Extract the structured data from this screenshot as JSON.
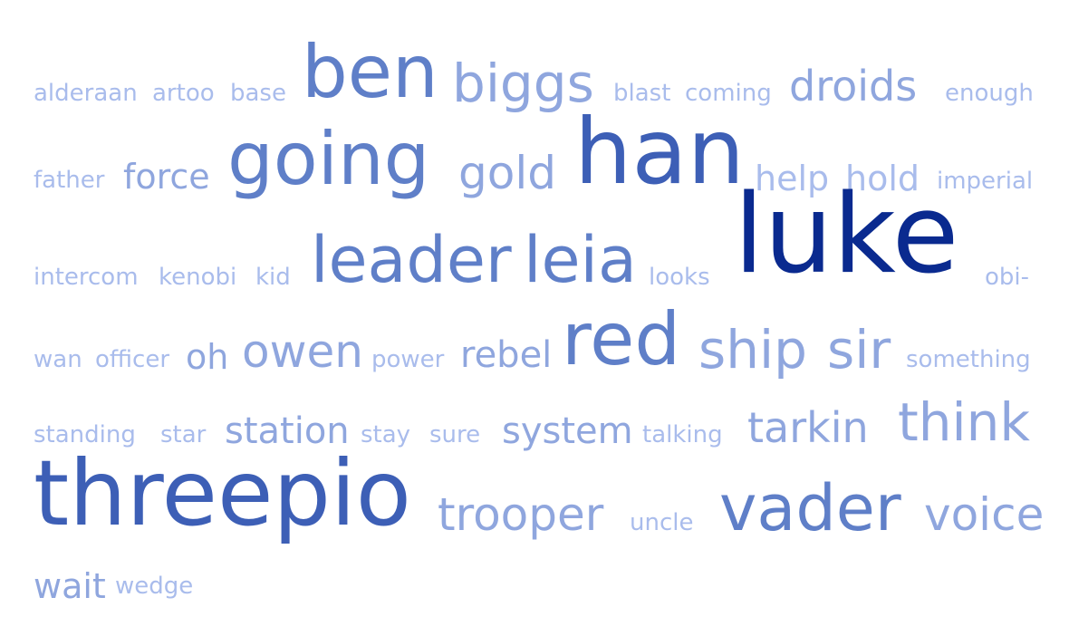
{
  "colors": {
    "background": "#ffffff",
    "darkest": "#0a2a8f",
    "dark": "#3d5fb6",
    "mid": "#5f7fc8",
    "light": "#8fa6de",
    "lightest": "#a9bcec"
  },
  "words": [
    {
      "text": "alderaan",
      "tone": "lightest"
    },
    {
      "text": "artoo",
      "tone": "lightest"
    },
    {
      "text": "base",
      "tone": "lightest"
    },
    {
      "text": "ben",
      "tone": "mid"
    },
    {
      "text": "biggs",
      "tone": "light"
    },
    {
      "text": "blast",
      "tone": "lightest"
    },
    {
      "text": "coming",
      "tone": "lightest"
    },
    {
      "text": "droids",
      "tone": "light"
    },
    {
      "text": "enough",
      "tone": "lightest"
    },
    {
      "text": "father",
      "tone": "lightest"
    },
    {
      "text": "force",
      "tone": "light"
    },
    {
      "text": "going",
      "tone": "mid"
    },
    {
      "text": "gold",
      "tone": "light"
    },
    {
      "text": "han",
      "tone": "dark"
    },
    {
      "text": "help",
      "tone": "lightest"
    },
    {
      "text": "hold",
      "tone": "lightest"
    },
    {
      "text": "imperial",
      "tone": "lightest"
    },
    {
      "text": "luke",
      "tone": "darkest"
    },
    {
      "text": "intercom",
      "tone": "lightest"
    },
    {
      "text": "kenobi",
      "tone": "lightest"
    },
    {
      "text": "kid",
      "tone": "lightest"
    },
    {
      "text": "leader",
      "tone": "mid"
    },
    {
      "text": "leia",
      "tone": "mid"
    },
    {
      "text": "looks",
      "tone": "lightest"
    },
    {
      "text": "obi-",
      "tone": "lightest"
    },
    {
      "text": "wan",
      "tone": "lightest"
    },
    {
      "text": "officer",
      "tone": "lightest"
    },
    {
      "text": "oh",
      "tone": "light"
    },
    {
      "text": "owen",
      "tone": "light"
    },
    {
      "text": "power",
      "tone": "lightest"
    },
    {
      "text": "rebel",
      "tone": "light"
    },
    {
      "text": "red",
      "tone": "mid"
    },
    {
      "text": "ship",
      "tone": "light"
    },
    {
      "text": "sir",
      "tone": "light"
    },
    {
      "text": "something",
      "tone": "lightest"
    },
    {
      "text": "standing",
      "tone": "lightest"
    },
    {
      "text": "star",
      "tone": "lightest"
    },
    {
      "text": "station",
      "tone": "light"
    },
    {
      "text": "stay",
      "tone": "lightest"
    },
    {
      "text": "sure",
      "tone": "lightest"
    },
    {
      "text": "system",
      "tone": "light"
    },
    {
      "text": "talking",
      "tone": "lightest"
    },
    {
      "text": "tarkin",
      "tone": "light"
    },
    {
      "text": "think",
      "tone": "light"
    },
    {
      "text": "threepio",
      "tone": "dark"
    },
    {
      "text": "trooper",
      "tone": "light"
    },
    {
      "text": "uncle",
      "tone": "lightest"
    },
    {
      "text": "vader",
      "tone": "mid"
    },
    {
      "text": "voice",
      "tone": "light"
    },
    {
      "text": "wait",
      "tone": "light"
    },
    {
      "text": "wedge",
      "tone": "lightest"
    }
  ]
}
